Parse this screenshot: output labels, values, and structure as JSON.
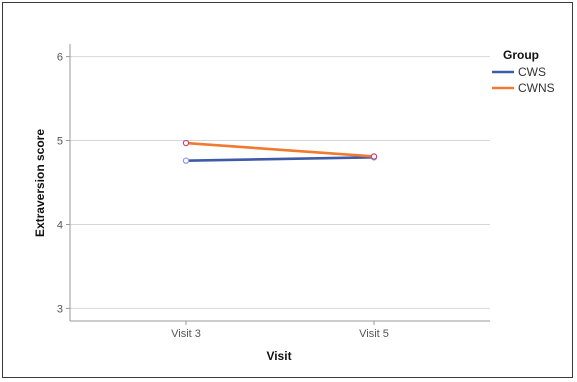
{
  "chart_data": {
    "type": "line",
    "categories": [
      "Visit 3",
      "Visit 5"
    ],
    "series": [
      {
        "name": "CWS",
        "values": [
          4.76,
          4.8
        ],
        "color": "#3f5ba8"
      },
      {
        "name": "CWNS",
        "values": [
          4.97,
          4.81
        ],
        "color": "#f07a30"
      }
    ],
    "xlabel": "Visit",
    "ylabel": "Extraversion score",
    "ylim": [
      2.85,
      6.15
    ],
    "yticks": [
      "3",
      "4",
      "5",
      "6"
    ],
    "legend_title": "Group",
    "legend_position": "right",
    "grid": "horizontal"
  }
}
